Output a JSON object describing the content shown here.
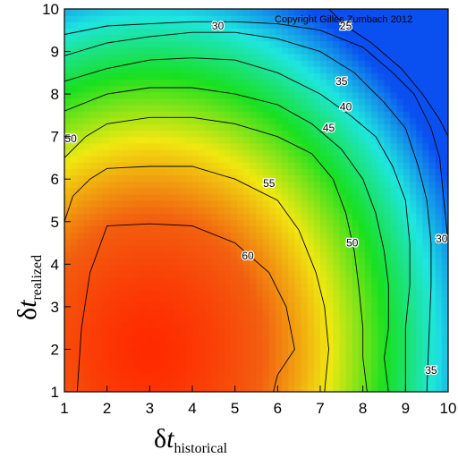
{
  "chart_data": {
    "type": "heatmap",
    "copyright": "Copyright Gilles Zumbach 2012",
    "xlabel": {
      "symbol": "δ",
      "var": "t",
      "sub": "historical"
    },
    "ylabel": {
      "symbol": "δ",
      "var": "t",
      "sub": "realized"
    },
    "xlim": [
      1,
      10
    ],
    "ylim": [
      1,
      10
    ],
    "x_ticks": [
      1,
      2,
      3,
      4,
      5,
      6,
      7,
      8,
      9,
      10
    ],
    "y_ticks": [
      1,
      2,
      3,
      4,
      5,
      6,
      7,
      8,
      9,
      10
    ],
    "grid": false,
    "colormap": [
      "#0a4ff0",
      "#1ee6e0",
      "#18e020",
      "#f0e810",
      "#f26010",
      "#ff2a00"
    ],
    "contours": [
      {
        "level": 60,
        "points": [
          [
            1.3,
            1
          ],
          [
            1.4,
            2.5
          ],
          [
            1.6,
            3.8
          ],
          [
            2.0,
            4.9
          ],
          [
            3.0,
            4.95
          ],
          [
            4.0,
            4.9
          ],
          [
            5.0,
            4.5
          ],
          [
            5.8,
            3.8
          ],
          [
            6.2,
            3.0
          ],
          [
            6.4,
            2.0
          ],
          [
            6.0,
            1.4
          ],
          [
            5.9,
            1
          ]
        ]
      },
      {
        "level": 55,
        "points": [
          [
            1,
            5.0
          ],
          [
            1.2,
            5.6
          ],
          [
            1.6,
            6.0
          ],
          [
            2.0,
            6.25
          ],
          [
            3.0,
            6.3
          ],
          [
            4.0,
            6.3
          ],
          [
            5.0,
            6.0
          ],
          [
            6.0,
            5.5
          ],
          [
            6.5,
            4.8
          ],
          [
            6.9,
            3.8
          ],
          [
            7.1,
            3.0
          ],
          [
            7.2,
            2.0
          ],
          [
            7.1,
            1
          ]
        ]
      },
      {
        "level": 50,
        "points": [
          [
            1,
            6.5
          ],
          [
            1.5,
            7.0
          ],
          [
            2.0,
            7.3
          ],
          [
            3.0,
            7.45
          ],
          [
            4.0,
            7.45
          ],
          [
            5.0,
            7.3
          ],
          [
            6.0,
            7.0
          ],
          [
            6.8,
            6.6
          ],
          [
            7.3,
            6.0
          ],
          [
            7.6,
            5.2
          ],
          [
            7.8,
            4.3
          ],
          [
            7.9,
            3.5
          ],
          [
            8.0,
            2.5
          ],
          [
            8.0,
            1.8
          ],
          [
            8.1,
            1
          ]
        ]
      },
      {
        "level": 45,
        "points": [
          [
            1,
            7.6
          ],
          [
            2.0,
            8.0
          ],
          [
            3.0,
            8.15
          ],
          [
            4.0,
            8.15
          ],
          [
            5.0,
            8.0
          ],
          [
            6.0,
            7.75
          ],
          [
            6.8,
            7.3
          ],
          [
            7.5,
            6.7
          ],
          [
            8.0,
            6.0
          ],
          [
            8.3,
            5.2
          ],
          [
            8.5,
            4.3
          ],
          [
            8.6,
            3.5
          ],
          [
            8.6,
            2.5
          ],
          [
            8.5,
            1.8
          ],
          [
            8.6,
            1
          ]
        ]
      },
      {
        "level": 40,
        "points": [
          [
            1,
            8.3
          ],
          [
            2.0,
            8.6
          ],
          [
            3.0,
            8.8
          ],
          [
            4.0,
            8.85
          ],
          [
            5.0,
            8.8
          ],
          [
            6.0,
            8.5
          ],
          [
            7.0,
            8.0
          ],
          [
            7.7,
            7.5
          ],
          [
            8.3,
            7.0
          ],
          [
            8.7,
            6.3
          ],
          [
            9.0,
            5.5
          ],
          [
            9.1,
            4.5
          ],
          [
            9.1,
            3.5
          ],
          [
            9.0,
            2.5
          ],
          [
            9.0,
            1
          ]
        ]
      },
      {
        "level": 35,
        "points": [
          [
            1,
            8.9
          ],
          [
            2.0,
            9.2
          ],
          [
            3.0,
            9.35
          ],
          [
            4.0,
            9.45
          ],
          [
            5.0,
            9.45
          ],
          [
            6.0,
            9.3
          ],
          [
            7.0,
            9.0
          ],
          [
            7.8,
            8.5
          ],
          [
            8.5,
            7.8
          ],
          [
            9.0,
            7.2
          ],
          [
            9.3,
            6.3
          ],
          [
            9.5,
            5.5
          ],
          [
            9.6,
            4.5
          ],
          [
            9.6,
            3.5
          ],
          [
            9.55,
            2.3
          ],
          [
            9.5,
            1
          ]
        ]
      },
      {
        "level": 30,
        "points": [
          [
            1,
            9.4
          ],
          [
            2.0,
            9.6
          ],
          [
            3.0,
            9.65
          ],
          [
            4.0,
            9.7
          ],
          [
            5.0,
            9.7
          ],
          [
            6.0,
            9.65
          ],
          [
            7.0,
            9.5
          ],
          [
            8.0,
            9.1
          ],
          [
            8.7,
            8.5
          ],
          [
            9.2,
            8.0
          ],
          [
            9.6,
            7.2
          ],
          [
            9.8,
            6.5
          ],
          [
            9.9,
            5.5
          ],
          [
            10,
            4.5
          ]
        ]
      },
      {
        "level": 25,
        "points": [
          [
            7.2,
            10
          ],
          [
            7.6,
            9.6
          ],
          [
            8.2,
            9.2
          ],
          [
            8.9,
            8.6
          ],
          [
            9.4,
            8.0
          ],
          [
            9.8,
            7.4
          ],
          [
            10,
            7.0
          ]
        ]
      }
    ],
    "contour_labels": [
      {
        "text": "30",
        "x": 4.6,
        "y": 9.6
      },
      {
        "text": "25",
        "x": 7.6,
        "y": 9.6
      },
      {
        "text": "35",
        "x": 7.5,
        "y": 8.3
      },
      {
        "text": "40",
        "x": 7.6,
        "y": 7.7
      },
      {
        "text": "45",
        "x": 7.2,
        "y": 7.2
      },
      {
        "text": "50",
        "x": 1.15,
        "y": 6.95
      },
      {
        "text": "55",
        "x": 5.8,
        "y": 5.9
      },
      {
        "text": "60",
        "x": 5.3,
        "y": 4.2
      },
      {
        "text": "50",
        "x": 7.75,
        "y": 4.5
      },
      {
        "text": "30",
        "x": 9.85,
        "y": 4.6
      },
      {
        "text": "35",
        "x": 9.6,
        "y": 1.5
      }
    ]
  }
}
